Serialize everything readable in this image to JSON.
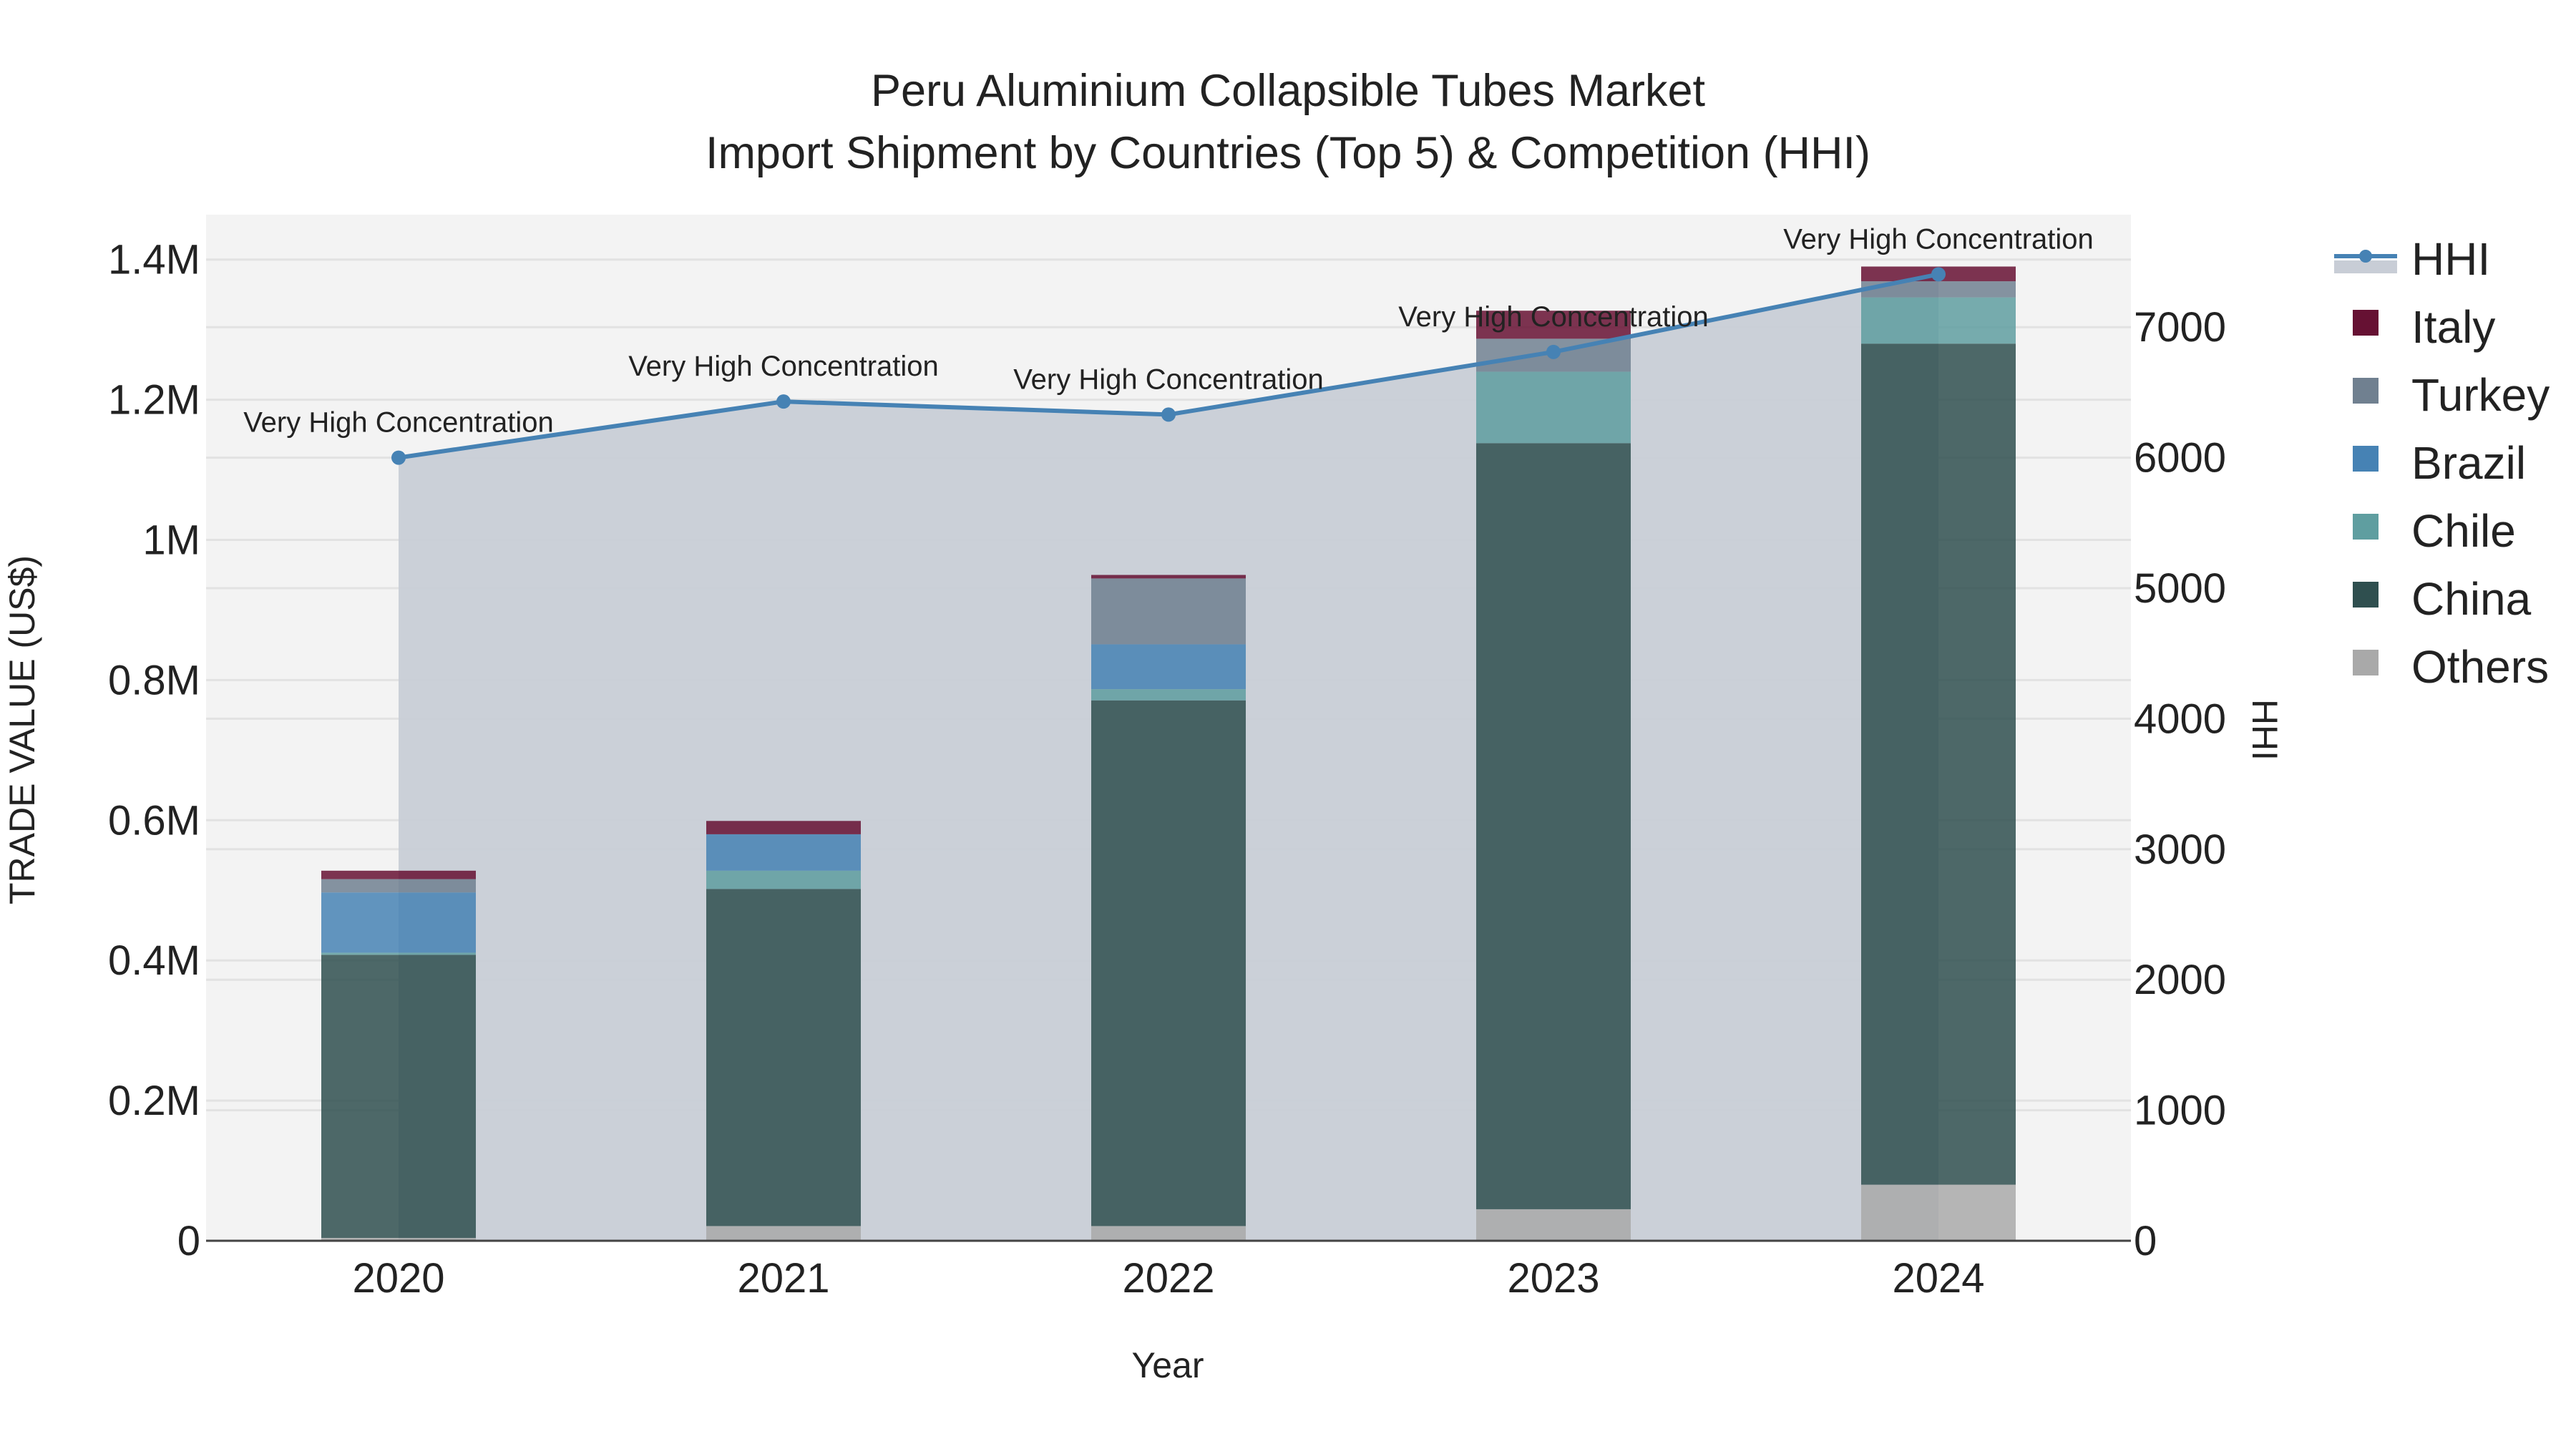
{
  "chart_data": {
    "type": "bar",
    "title": "Peru Aluminium Collapsible Tubes Market",
    "subtitle": "Import Shipment by Countries (Top 5) & Competition (HHI)",
    "xlabel": "Year",
    "ylabel": "TRADE VALUE (US$)",
    "y2label": "HHI",
    "categories": [
      "2020",
      "2021",
      "2022",
      "2023",
      "2024"
    ],
    "ylim": [
      0,
      1460000
    ],
    "y2lim": [
      0,
      7700
    ],
    "yticks": [
      "0",
      "0.2M",
      "0.4M",
      "0.6M",
      "0.8M",
      "1M",
      "1.2M",
      "1.4M"
    ],
    "y2ticks": [
      "0",
      "1000",
      "2000",
      "3000",
      "4000",
      "5000",
      "6000",
      "7000"
    ],
    "grid": true,
    "legend_position": "right",
    "barmode": "stack",
    "series": [
      {
        "name": "Others",
        "color": "#A9A9A9",
        "values": [
          4000,
          21000,
          21000,
          45000,
          80000
        ]
      },
      {
        "name": "China",
        "color": "#2F4F4F",
        "values": [
          404000,
          481000,
          750000,
          1093000,
          1200000
        ]
      },
      {
        "name": "Chile",
        "color": "#5F9EA0",
        "values": [
          3000,
          26000,
          16000,
          102000,
          66000
        ]
      },
      {
        "name": "Brazil",
        "color": "#4682B4",
        "values": [
          86000,
          52000,
          64000,
          0,
          0
        ]
      },
      {
        "name": "Turkey",
        "color": "#708090",
        "values": [
          19000,
          0,
          94000,
          47000,
          23000
        ]
      },
      {
        "name": "Italy",
        "color": "#661133",
        "values": [
          12000,
          19000,
          5000,
          40000,
          21000
        ]
      }
    ],
    "line_series": {
      "name": "HHI",
      "color": "#4682B4",
      "fill_color": "#C8CDD6",
      "axis": "y2",
      "values": [
        6000,
        6430,
        6330,
        6810,
        7405
      ],
      "annotations": [
        "Very High Concentration",
        "Very High Concentration",
        "Very High Concentration",
        "Very High Concentration",
        "Very High Concentration"
      ]
    },
    "legend": [
      "HHI",
      "Italy",
      "Turkey",
      "Brazil",
      "Chile",
      "China",
      "Others"
    ]
  }
}
